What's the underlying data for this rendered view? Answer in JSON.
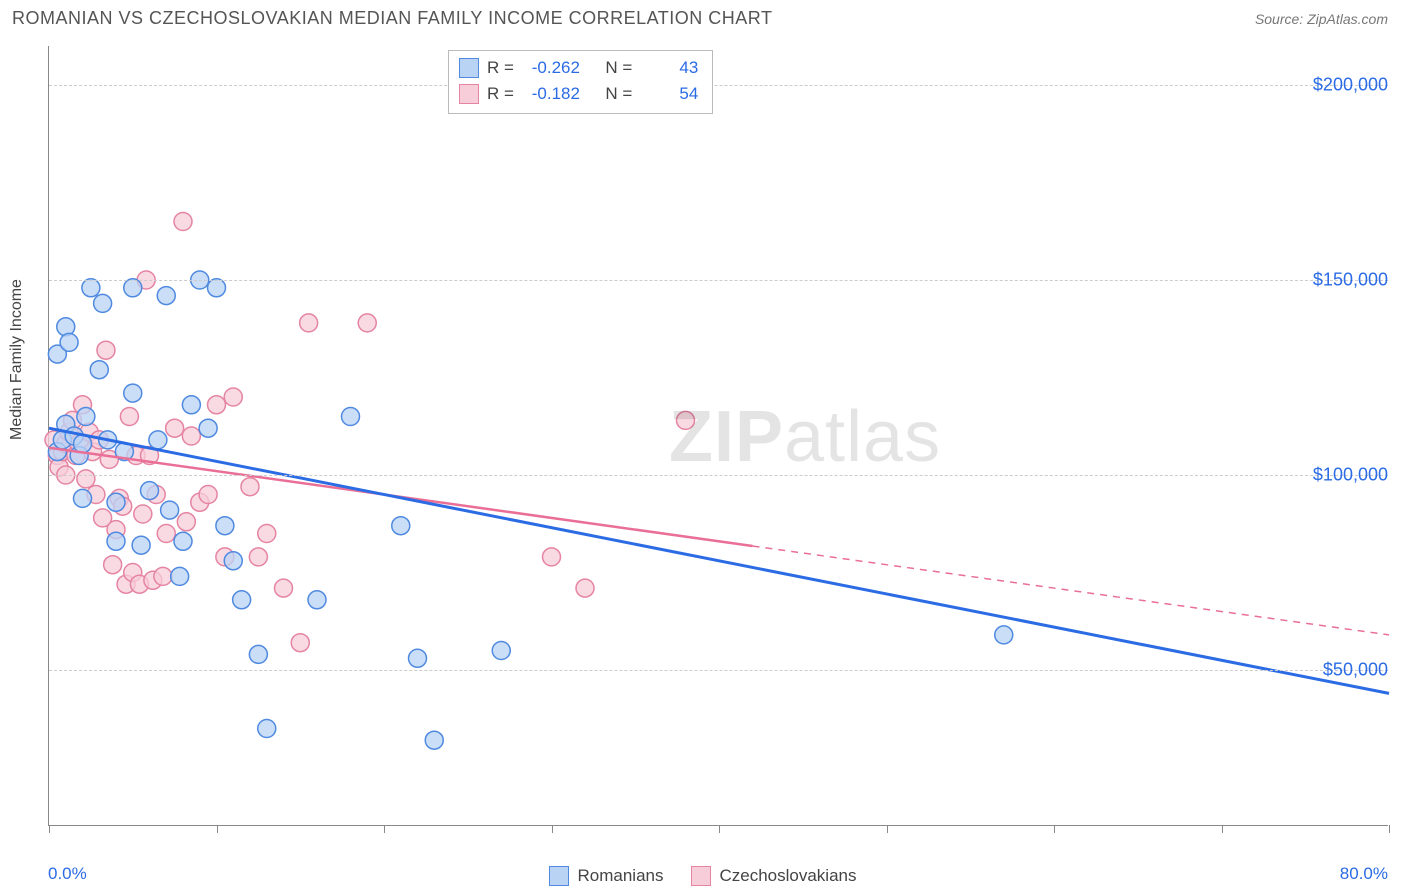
{
  "header": {
    "title": "ROMANIAN VS CZECHOSLOVAKIAN MEDIAN FAMILY INCOME CORRELATION CHART",
    "source": "Source: ZipAtlas.com"
  },
  "watermark": {
    "zip": "ZIP",
    "atlas": "atlas"
  },
  "axes": {
    "ylabel": "Median Family Income",
    "ylabel_fontsize": 16,
    "xlim": [
      0,
      80
    ],
    "ylim": [
      10000,
      210000
    ],
    "yticks": [
      50000,
      100000,
      150000,
      200000
    ],
    "ytick_labels": [
      "$50,000",
      "$100,000",
      "$150,000",
      "$200,000"
    ],
    "xtick_positions": [
      0,
      10,
      20,
      30,
      40,
      50,
      60,
      70,
      80
    ],
    "x_end_labels": {
      "min": "0.0%",
      "max": "80.0%"
    },
    "grid_color": "#cccccc",
    "axis_color": "#888888",
    "tick_label_color": "#2b6be4"
  },
  "series": {
    "romanians": {
      "label": "Romanians",
      "fill": "#b9d3f5",
      "stroke": "#4f8ae0",
      "line_color": "#2b6be4",
      "line_width": 3,
      "R": "-0.262",
      "N": "43",
      "trend": {
        "x1": 0,
        "y1": 112000,
        "x2": 80,
        "y2": 44000,
        "solid_to_x": 80
      },
      "points": [
        [
          0.5,
          131000
        ],
        [
          1,
          138000
        ],
        [
          1,
          113000
        ],
        [
          0.5,
          106000
        ],
        [
          0.8,
          109000
        ],
        [
          1.2,
          134000
        ],
        [
          1.5,
          110000
        ],
        [
          1.8,
          105000
        ],
        [
          2,
          108000
        ],
        [
          2,
          94000
        ],
        [
          2.2,
          115000
        ],
        [
          2.5,
          148000
        ],
        [
          3,
          127000
        ],
        [
          3.2,
          144000
        ],
        [
          3.5,
          109000
        ],
        [
          4,
          93000
        ],
        [
          4,
          83000
        ],
        [
          4.5,
          106000
        ],
        [
          5,
          148000
        ],
        [
          5,
          121000
        ],
        [
          5.5,
          82000
        ],
        [
          6,
          96000
        ],
        [
          6.5,
          109000
        ],
        [
          7,
          146000
        ],
        [
          7.2,
          91000
        ],
        [
          7.8,
          74000
        ],
        [
          8,
          83000
        ],
        [
          8.5,
          118000
        ],
        [
          9,
          150000
        ],
        [
          9.5,
          112000
        ],
        [
          10,
          148000
        ],
        [
          10.5,
          87000
        ],
        [
          11,
          78000
        ],
        [
          11.5,
          68000
        ],
        [
          12.5,
          54000
        ],
        [
          13,
          35000
        ],
        [
          16,
          68000
        ],
        [
          18,
          115000
        ],
        [
          21,
          87000
        ],
        [
          22,
          53000
        ],
        [
          23,
          32000
        ],
        [
          27,
          55000
        ],
        [
          57,
          59000
        ]
      ]
    },
    "czechoslovakians": {
      "label": "Czechoslovakians",
      "fill": "#f7cdd9",
      "stroke": "#e584a3",
      "line_color": "#ea6f96",
      "line_width": 2.5,
      "R": "-0.182",
      "N": "54",
      "trend": {
        "x1": 0,
        "y1": 107000,
        "x2": 80,
        "y2": 59000,
        "solid_to_x": 42
      },
      "points": [
        [
          0.3,
          109000
        ],
        [
          0.5,
          105000
        ],
        [
          0.6,
          102000
        ],
        [
          0.8,
          106000
        ],
        [
          1,
          100000
        ],
        [
          1,
          108000
        ],
        [
          1.2,
          111000
        ],
        [
          1.4,
          114000
        ],
        [
          1.6,
          105000
        ],
        [
          1.8,
          108000
        ],
        [
          2,
          118000
        ],
        [
          2.2,
          99000
        ],
        [
          2.4,
          111000
        ],
        [
          2.6,
          106000
        ],
        [
          2.8,
          95000
        ],
        [
          3,
          109000
        ],
        [
          3.2,
          89000
        ],
        [
          3.4,
          132000
        ],
        [
          3.6,
          104000
        ],
        [
          3.8,
          77000
        ],
        [
          4,
          86000
        ],
        [
          4.2,
          94000
        ],
        [
          4.4,
          92000
        ],
        [
          4.6,
          72000
        ],
        [
          4.8,
          115000
        ],
        [
          5,
          75000
        ],
        [
          5.2,
          105000
        ],
        [
          5.4,
          72000
        ],
        [
          5.6,
          90000
        ],
        [
          5.8,
          150000
        ],
        [
          6,
          105000
        ],
        [
          6.2,
          73000
        ],
        [
          6.4,
          95000
        ],
        [
          6.8,
          74000
        ],
        [
          7,
          85000
        ],
        [
          7.5,
          112000
        ],
        [
          8,
          165000
        ],
        [
          8.2,
          88000
        ],
        [
          8.5,
          110000
        ],
        [
          9,
          93000
        ],
        [
          9.5,
          95000
        ],
        [
          10,
          118000
        ],
        [
          10.5,
          79000
        ],
        [
          11,
          120000
        ],
        [
          12,
          97000
        ],
        [
          12.5,
          79000
        ],
        [
          13,
          85000
        ],
        [
          14,
          71000
        ],
        [
          15,
          57000
        ],
        [
          15.5,
          139000
        ],
        [
          19,
          139000
        ],
        [
          30,
          79000
        ],
        [
          32,
          71000
        ],
        [
          38,
          114000
        ]
      ]
    }
  },
  "marker": {
    "radius": 9,
    "opacity": 0.75,
    "stroke_width": 1.5
  },
  "stats_box": {
    "r_label": "R =",
    "n_label": "N ="
  },
  "legend_swatch": {
    "width": 20,
    "height": 20
  }
}
